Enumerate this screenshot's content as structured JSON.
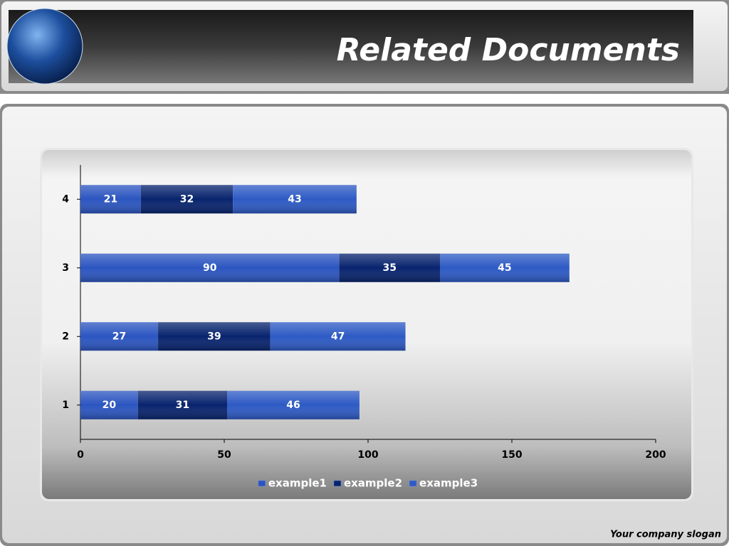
{
  "header": {
    "title": "Related Documents"
  },
  "footer": {
    "slogan": "Your company slogan"
  },
  "chart_data": {
    "type": "stacked-barh",
    "categories": [
      "1",
      "2",
      "3",
      "4"
    ],
    "series": [
      {
        "name": "example1",
        "color": "#2b55c0",
        "values": [
          20,
          27,
          90,
          21
        ]
      },
      {
        "name": "example2",
        "color": "#08246e",
        "values": [
          31,
          39,
          35,
          32
        ]
      },
      {
        "name": "example3",
        "color": "#2d5ac4",
        "values": [
          46,
          47,
          45,
          43
        ]
      }
    ],
    "xlim": [
      0,
      200
    ],
    "xticks": [
      0,
      50,
      100,
      150,
      200
    ],
    "legend": "bottom"
  }
}
